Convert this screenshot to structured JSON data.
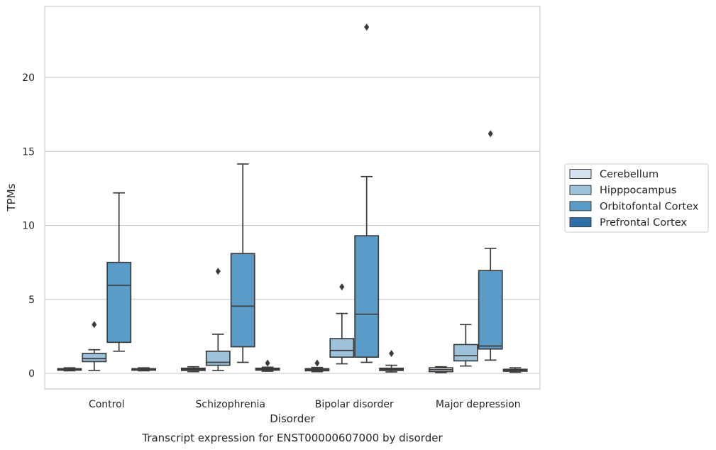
{
  "chart_data": {
    "type": "boxplot",
    "title": "Transcript expression for ENST00000607000 by disorder",
    "xlabel": "Disorder",
    "ylabel": "TPMs",
    "categories": [
      "Control",
      "Schizophrenia",
      "Bipolar disorder",
      "Major depression"
    ],
    "ylim": [
      -1.05,
      24.8
    ],
    "yticks": [
      0,
      5,
      10,
      15,
      20
    ],
    "grid": true,
    "legend_position": "right",
    "series": [
      {
        "name": "Cerebellum",
        "color": "#d5e2ef",
        "boxes": [
          {
            "whislo": 0.18,
            "q1": 0.22,
            "med": 0.27,
            "q3": 0.32,
            "whishi": 0.38,
            "fliers": []
          },
          {
            "whislo": 0.12,
            "q1": 0.2,
            "med": 0.28,
            "q3": 0.35,
            "whishi": 0.45,
            "fliers": []
          },
          {
            "whislo": 0.12,
            "q1": 0.18,
            "med": 0.25,
            "q3": 0.32,
            "whishi": 0.4,
            "fliers": [
              0.7
            ]
          },
          {
            "whislo": 0.05,
            "q1": 0.12,
            "med": 0.25,
            "q3": 0.38,
            "whishi": 0.45,
            "fliers": []
          }
        ]
      },
      {
        "name": "Hipppocampus",
        "color": "#9cc2dc",
        "boxes": [
          {
            "whislo": 0.2,
            "q1": 0.8,
            "med": 1.0,
            "q3": 1.35,
            "whishi": 1.6,
            "fliers": [
              3.3
            ]
          },
          {
            "whislo": 0.2,
            "q1": 0.55,
            "med": 0.75,
            "q3": 1.5,
            "whishi": 2.65,
            "fliers": [
              6.9
            ]
          },
          {
            "whislo": 0.65,
            "q1": 1.1,
            "med": 1.55,
            "q3": 2.35,
            "whishi": 4.05,
            "fliers": [
              5.85
            ]
          },
          {
            "whislo": 0.5,
            "q1": 0.85,
            "med": 1.2,
            "q3": 1.95,
            "whishi": 3.3,
            "fliers": []
          }
        ]
      },
      {
        "name": "Orbitofontal Cortex",
        "color": "#5b9bc7",
        "boxes": [
          {
            "whislo": 1.5,
            "q1": 2.1,
            "med": 5.95,
            "q3": 7.5,
            "whishi": 12.2,
            "fliers": []
          },
          {
            "whislo": 0.75,
            "q1": 1.8,
            "med": 4.55,
            "q3": 8.1,
            "whishi": 14.15,
            "fliers": []
          },
          {
            "whislo": 0.75,
            "q1": 1.1,
            "med": 4.0,
            "q3": 9.3,
            "whishi": 13.3,
            "fliers": [
              23.4
            ]
          },
          {
            "whislo": 0.9,
            "q1": 1.65,
            "med": 1.85,
            "q3": 6.95,
            "whishi": 8.45,
            "fliers": [
              16.2
            ]
          }
        ]
      },
      {
        "name": "Prefrontal Cortex",
        "color": "#2f6fa8",
        "boxes": [
          {
            "whislo": 0.18,
            "q1": 0.22,
            "med": 0.27,
            "q3": 0.32,
            "whishi": 0.38,
            "fliers": []
          },
          {
            "whislo": 0.15,
            "q1": 0.22,
            "med": 0.28,
            "q3": 0.35,
            "whishi": 0.42,
            "fliers": [
              0.7
            ]
          },
          {
            "whislo": 0.1,
            "q1": 0.2,
            "med": 0.28,
            "q3": 0.35,
            "whishi": 0.55,
            "fliers": [
              1.35
            ]
          },
          {
            "whislo": 0.08,
            "q1": 0.15,
            "med": 0.2,
            "q3": 0.28,
            "whishi": 0.38,
            "fliers": []
          }
        ]
      }
    ]
  }
}
